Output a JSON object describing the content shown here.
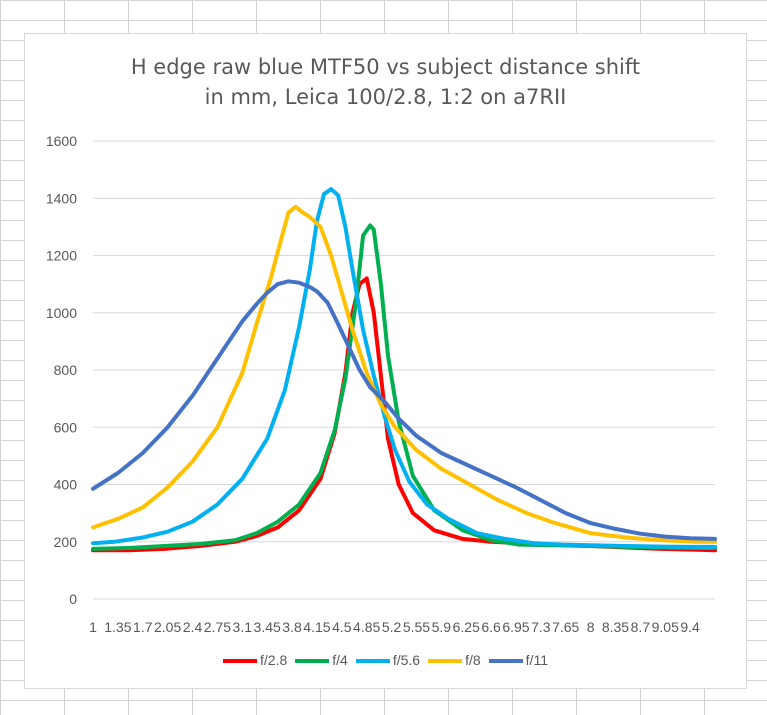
{
  "chart_data": {
    "type": "line",
    "title_line1": "H edge raw blue MTF50 vs subject distance shift",
    "title_line2": "in mm, Leica 100/2.8, 1:2 on a7RII",
    "xlabel": "",
    "ylabel": "",
    "ylim": [
      0,
      1600
    ],
    "yticks": [
      "0",
      "200",
      "400",
      "600",
      "800",
      "1000",
      "1200",
      "1400",
      "1600"
    ],
    "xtick_labels": [
      "1",
      "1.35",
      "1.7",
      "2.05",
      "2.4",
      "2.75",
      "3.1",
      "3.45",
      "3.8",
      "4.15",
      "4.5",
      "4.85",
      "5.2",
      "5.55",
      "5.9",
      "6.25",
      "6.6",
      "6.95",
      "7.3",
      "7.65",
      "8",
      "8.35",
      "8.7",
      "9.05",
      "9.4"
    ],
    "xlim": [
      1,
      9.75
    ],
    "grid": "horizontal",
    "legend_position": "bottom",
    "series": [
      {
        "name": "f/2.8",
        "color": "#ff0000",
        "x": [
          1,
          1.5,
          2,
          2.5,
          3,
          3.3,
          3.6,
          3.9,
          4.2,
          4.4,
          4.55,
          4.65,
          4.75,
          4.85,
          4.95,
          5.05,
          5.15,
          5.3,
          5.5,
          5.8,
          6.2,
          6.6,
          7,
          7.5,
          8,
          8.5,
          9,
          9.5,
          9.75
        ],
        "y": [
          170,
          170,
          175,
          185,
          200,
          220,
          250,
          310,
          420,
          580,
          790,
          1000,
          1100,
          1120,
          1000,
          780,
          560,
          400,
          300,
          240,
          210,
          200,
          195,
          190,
          185,
          180,
          175,
          172,
          170
        ]
      },
      {
        "name": "f/4",
        "color": "#00b050",
        "x": [
          1,
          1.5,
          2,
          2.5,
          3,
          3.3,
          3.6,
          3.9,
          4.2,
          4.4,
          4.55,
          4.7,
          4.8,
          4.9,
          4.95,
          5.05,
          5.15,
          5.3,
          5.5,
          5.8,
          6.2,
          6.6,
          7,
          7.5,
          8,
          8.5,
          9,
          9.5,
          9.75
        ],
        "y": [
          175,
          178,
          185,
          192,
          205,
          230,
          270,
          330,
          440,
          590,
          770,
          1040,
          1270,
          1305,
          1290,
          1100,
          850,
          620,
          430,
          310,
          240,
          205,
          190,
          188,
          185,
          182,
          180,
          178,
          178
        ]
      },
      {
        "name": "f/5.6",
        "color": "#00b0f0",
        "x": [
          1,
          1.3,
          1.7,
          2.05,
          2.4,
          2.75,
          3.1,
          3.45,
          3.7,
          3.9,
          4.05,
          4.15,
          4.25,
          4.35,
          4.45,
          4.55,
          4.65,
          4.8,
          4.95,
          5.1,
          5.25,
          5.45,
          5.7,
          6,
          6.4,
          6.8,
          7.2,
          7.6,
          8,
          8.5,
          9,
          9.5,
          9.75
        ],
        "y": [
          195,
          200,
          215,
          235,
          270,
          330,
          420,
          560,
          730,
          950,
          1150,
          1320,
          1415,
          1432,
          1410,
          1300,
          1150,
          940,
          780,
          640,
          520,
          410,
          330,
          280,
          230,
          210,
          195,
          190,
          188,
          185,
          183,
          182,
          182
        ]
      },
      {
        "name": "f/8",
        "color": "#ffc000",
        "x": [
          1,
          1.35,
          1.7,
          2.05,
          2.4,
          2.75,
          3.1,
          3.3,
          3.5,
          3.65,
          3.75,
          3.85,
          3.95,
          4.05,
          4.2,
          4.35,
          4.5,
          4.65,
          4.85,
          5.05,
          5.25,
          5.55,
          5.9,
          6.3,
          6.7,
          7.1,
          7.5,
          8,
          8.5,
          9,
          9.5,
          9.75
        ],
        "y": [
          250,
          280,
          320,
          390,
          480,
          600,
          790,
          960,
          1120,
          1260,
          1350,
          1370,
          1350,
          1335,
          1300,
          1200,
          1070,
          940,
          790,
          680,
          600,
          520,
          455,
          400,
          345,
          300,
          265,
          230,
          215,
          205,
          200,
          200
        ]
      },
      {
        "name": "f/11",
        "color": "#4472c4",
        "x": [
          1,
          1.35,
          1.7,
          2.05,
          2.4,
          2.75,
          3.1,
          3.3,
          3.45,
          3.6,
          3.75,
          3.9,
          4.05,
          4.15,
          4.3,
          4.45,
          4.6,
          4.75,
          4.9,
          5.1,
          5.3,
          5.55,
          5.9,
          6.25,
          6.6,
          6.95,
          7.3,
          7.65,
          8,
          8.35,
          8.7,
          9.05,
          9.4,
          9.75
        ],
        "y": [
          385,
          440,
          510,
          600,
          710,
          840,
          970,
          1030,
          1070,
          1100,
          1110,
          1105,
          1090,
          1075,
          1035,
          960,
          880,
          800,
          740,
          690,
          630,
          570,
          510,
          470,
          430,
          390,
          345,
          300,
          265,
          245,
          228,
          218,
          212,
          210
        ]
      }
    ]
  }
}
